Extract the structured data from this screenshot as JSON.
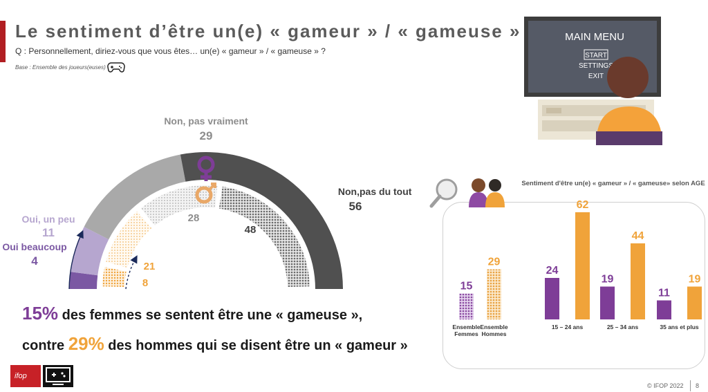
{
  "title": "Le sentiment d’être un(e) « gameur » / « gameuse »",
  "question": "Q : Personnellement, diriez-vous que vous êtes… un(e) « gameur » / « gameuse » ?",
  "base": "Base : Ensemble des joueurs(euses)",
  "colors": {
    "female": "#7e3d97",
    "male": "#f0a33a",
    "oui_beaucoup": "#7b58a3",
    "oui_un_peu": "#b6a6cf",
    "non_pas_vraiment": "#a9a9a9",
    "non_pas_du_tout": "#505050"
  },
  "summary": {
    "line1_pct": "15%",
    "line1_text": " des femmes se sentent être une « gameuse »,",
    "line2_prefix": "contre ",
    "line2_pct": "29%",
    "line2_text": " des hommes qui se disent être un « gameur »"
  },
  "copyright": "© IFOP 2022",
  "page_number": "8",
  "logo_text": "ifop",
  "chart_data": [
    {
      "type": "pie",
      "subtype": "half-donut",
      "categories": [
        "Oui beaucoup",
        "Oui, un peu",
        "Non, pas vraiment",
        "Non, pas du tout"
      ],
      "series": [
        {
          "name": "♀",
          "values": [
            4,
            11,
            29,
            56
          ]
        },
        {
          "name": "♂",
          "values": [
            8,
            21,
            28,
            48
          ]
        }
      ]
    },
    {
      "type": "bar",
      "title": "Sentiment d'être un(e) « gameur » / « gameuse» selon AGE",
      "groups": [
        {
          "label": "Ensemble Femmes",
          "values": [
            15
          ],
          "colors": [
            "#7e3d97"
          ],
          "pattern": true
        },
        {
          "label": "Ensemble Hommes",
          "values": [
            29
          ],
          "colors": [
            "#f0a33a"
          ],
          "pattern": true
        },
        {
          "label": "15 – 24 ans",
          "values": [
            24,
            62
          ],
          "colors": [
            "#7e3d97",
            "#f0a33a"
          ]
        },
        {
          "label": "25 – 34 ans",
          "values": [
            19,
            44
          ],
          "colors": [
            "#7e3d97",
            "#f0a33a"
          ]
        },
        {
          "label": "35 ans et plus",
          "values": [
            11,
            19
          ],
          "colors": [
            "#7e3d97",
            "#f0a33a"
          ]
        }
      ]
    }
  ]
}
